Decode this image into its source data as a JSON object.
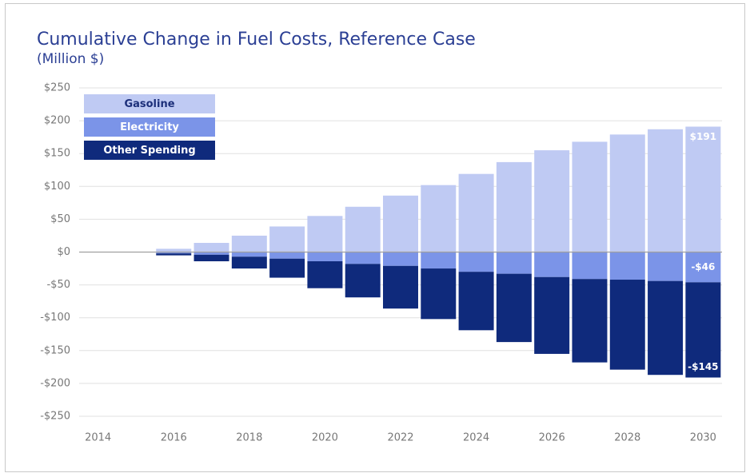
{
  "chart_data": {
    "type": "stacked_bar",
    "title": "Cumulative Change in Fuel Costs, Reference Case",
    "subtitle": "(Million $)",
    "categories": [
      "2014",
      null,
      "2016",
      null,
      "2018",
      null,
      "2020",
      null,
      "2022",
      null,
      "2024",
      null,
      "2026",
      null,
      "2028",
      null,
      "2030"
    ],
    "series": [
      {
        "name": "Gasoline",
        "color": "#bfcaf3",
        "stack": "positive",
        "values": [
          0,
          0,
          5,
          14,
          25,
          39,
          55,
          69,
          86,
          102,
          119,
          137,
          155,
          168,
          179,
          187,
          191
        ],
        "value_labels": [
          null,
          null,
          null,
          null,
          null,
          null,
          null,
          null,
          null,
          null,
          null,
          null,
          null,
          null,
          null,
          null,
          "$191"
        ]
      },
      {
        "name": "Electricity",
        "color": "#7b94e8",
        "stack": "negative",
        "values": [
          0,
          0,
          -2,
          -4,
          -7,
          -10,
          -14,
          -18,
          -21,
          -25,
          -30,
          -33,
          -38,
          -41,
          -42,
          -44,
          -46
        ],
        "value_labels": [
          null,
          null,
          null,
          null,
          null,
          null,
          null,
          null,
          null,
          null,
          null,
          null,
          null,
          null,
          null,
          null,
          "-$46"
        ]
      },
      {
        "name": "Other Spending",
        "color": "#0f2a7c",
        "stack": "negative",
        "values": [
          0,
          0,
          -3,
          -10,
          -18,
          -29,
          -41,
          -51,
          -65,
          -77,
          -89,
          -104,
          -117,
          -127,
          -137,
          -143,
          -145
        ],
        "value_labels": [
          null,
          null,
          null,
          null,
          null,
          null,
          null,
          null,
          null,
          null,
          null,
          null,
          null,
          null,
          null,
          null,
          "-$145"
        ]
      }
    ],
    "ylim": [
      -250,
      250
    ],
    "yticks": [
      {
        "value": -250,
        "label": "-$250"
      },
      {
        "value": -200,
        "label": "-$200"
      },
      {
        "value": -150,
        "label": "-$150"
      },
      {
        "value": -100,
        "label": "-$100"
      },
      {
        "value": -50,
        "label": "-$50"
      },
      {
        "value": 0,
        "label": "$0"
      },
      {
        "value": 50,
        "label": "$50"
      },
      {
        "value": 100,
        "label": "$100"
      },
      {
        "value": 150,
        "label": "$150"
      },
      {
        "value": 200,
        "label": "$200"
      },
      {
        "value": 250,
        "label": "$250"
      }
    ],
    "grid": true,
    "legend": "top-left"
  }
}
